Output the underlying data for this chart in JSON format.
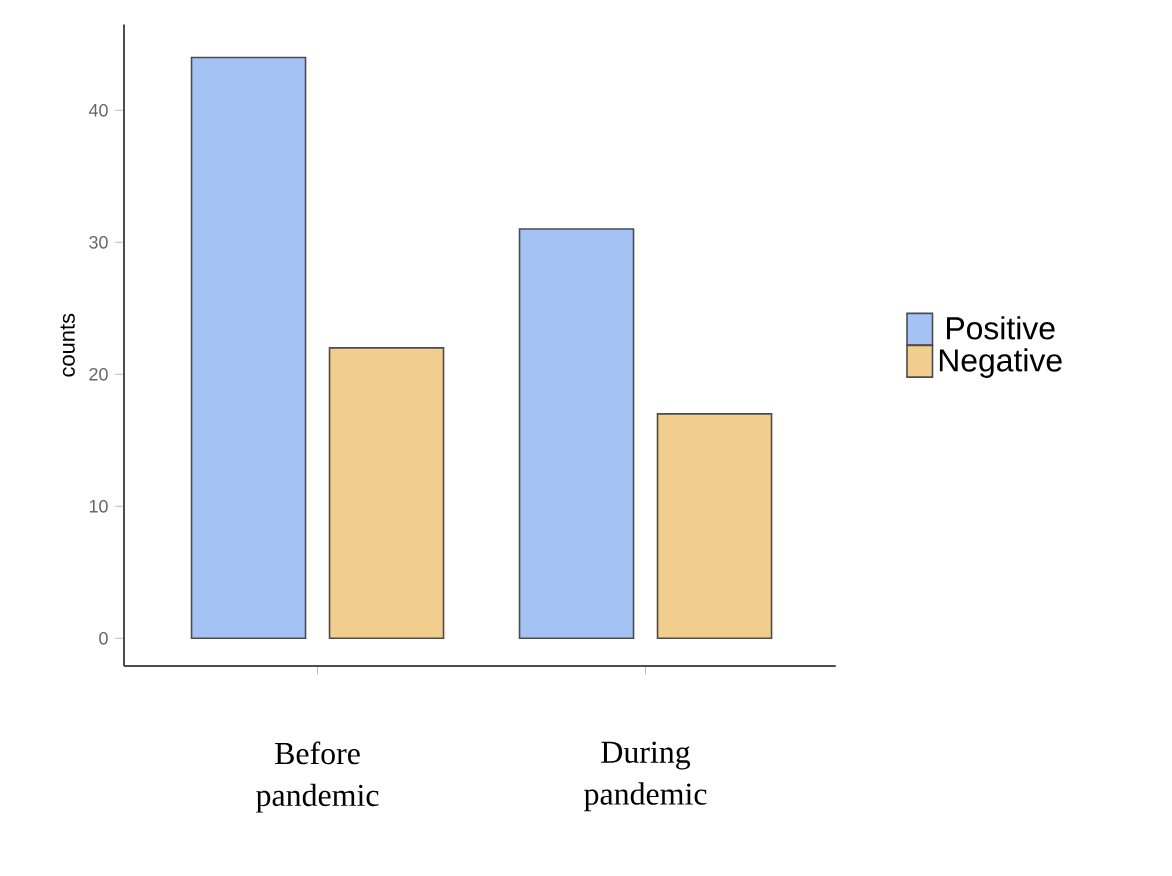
{
  "chart_data": {
    "type": "bar",
    "ylabel": "counts",
    "categories": [
      "Before pandemic",
      "During pandemic"
    ],
    "series": [
      {
        "name": "Positive",
        "color": "#a4c2f4",
        "values": [
          44,
          31
        ]
      },
      {
        "name": "Negative",
        "color": "#f1cd8e",
        "values": [
          22,
          17
        ]
      }
    ],
    "ylim": [
      -2.1,
      46.5
    ],
    "yticks": [
      0,
      10,
      20,
      30,
      40
    ],
    "legend": "right",
    "grid": false
  }
}
